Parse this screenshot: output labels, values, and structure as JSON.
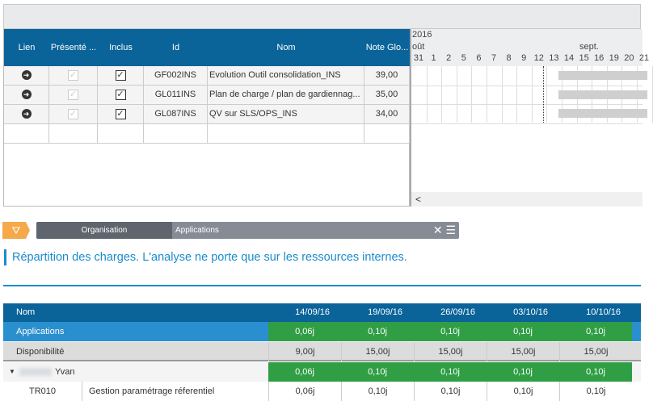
{
  "grid": {
    "columns": [
      "Lien",
      "Présenté ...",
      "Inclus",
      "Id",
      "Nom",
      "Note Glo..."
    ],
    "rows": [
      {
        "id": "GF002INS",
        "nom": "Evolution Outil consolidation_INS",
        "note": "39,00"
      },
      {
        "id": "GL011INS",
        "nom": "Plan de charge / plan de gardiennag...",
        "note": "35,00"
      },
      {
        "id": "GL087INS",
        "nom": "QV sur SLS/OPS_INS",
        "note": "34,00"
      }
    ]
  },
  "gantt": {
    "year": "2016",
    "month1": "oût",
    "month2": "sept.",
    "days": [
      "31",
      "1",
      "2",
      "5",
      "6",
      "7",
      "8",
      "9",
      "12",
      "13",
      "14",
      "15",
      "16",
      "19",
      "20",
      "21"
    ],
    "scroll_left": "<"
  },
  "filter": {
    "organisation": "Organisation",
    "applications": "Applications",
    "clear": "✕",
    "menu": "☰"
  },
  "description": "Répartition des charges. L'analyse ne porte que sur les ressources internes.",
  "charges": {
    "header": "Nom",
    "dates": [
      "14/09/16",
      "19/09/16",
      "26/09/16",
      "03/10/16",
      "10/10/16"
    ],
    "applications": {
      "label": "Applications",
      "values": [
        "0,06j",
        "0,10j",
        "0,10j",
        "0,10j",
        "0,10j"
      ]
    },
    "disponibilite": {
      "label": "Disponibilité",
      "values": [
        "9,00j",
        "15,00j",
        "15,00j",
        "15,00j",
        "15,00j"
      ]
    },
    "person": {
      "label": "Yvan",
      "values": [
        "0,06j",
        "0,10j",
        "0,10j",
        "0,10j",
        "0,10j"
      ]
    },
    "task": {
      "code": "TR010",
      "label": "Gestion paramétrage réferentiel",
      "values": [
        "0,06j",
        "0,10j",
        "0,10j",
        "0,10j",
        "0,10j"
      ]
    }
  },
  "colors": {
    "header": "#0a6399",
    "accent": "#1a8ccc",
    "green": "#2f9e44",
    "orange": "#f5a94a"
  }
}
